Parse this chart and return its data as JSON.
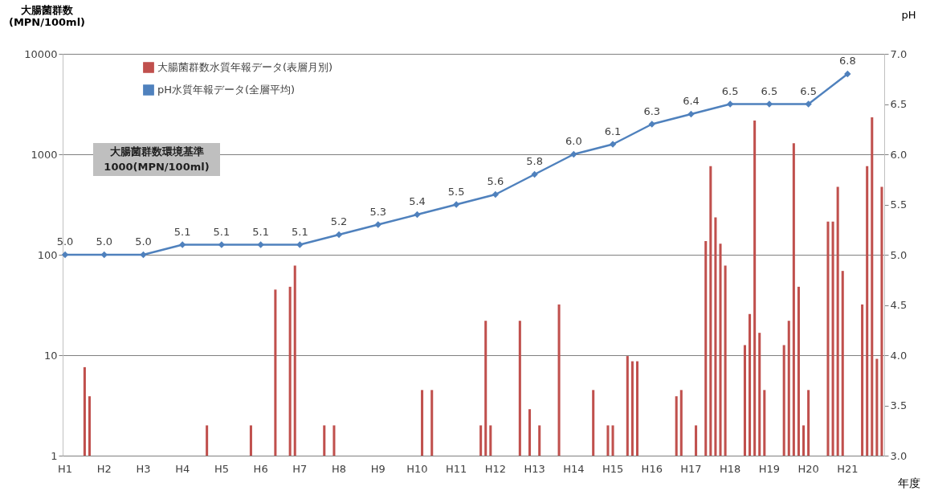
{
  "chart_data": {
    "type": "bar",
    "ylabel": "大腸菌群数\n(MPN/100ml)",
    "y2label": "pH",
    "xlabel": "年度",
    "categories": [
      "H1",
      null,
      null,
      null,
      null,
      null,
      null,
      null,
      "H2",
      null,
      null,
      null,
      null,
      null,
      null,
      null,
      "H3",
      null,
      null,
      null,
      null,
      null,
      null,
      null,
      "H4",
      null,
      null,
      null,
      null,
      null,
      null,
      null,
      "H5",
      null,
      null,
      null,
      null,
      null,
      null,
      null,
      "H6",
      null,
      null,
      null,
      null,
      null,
      null,
      null,
      "H7",
      null,
      null,
      null,
      null,
      null,
      null,
      null,
      "H8",
      null,
      null,
      null,
      null,
      null,
      null,
      null,
      "H9",
      null,
      null,
      null,
      null,
      null,
      null,
      null,
      "H10",
      null,
      null,
      null,
      null,
      null,
      null,
      null,
      "H11",
      null,
      null,
      null,
      null,
      null,
      null,
      null,
      "H12",
      null,
      null,
      null,
      null,
      null,
      null,
      null,
      "H13",
      null,
      null,
      null,
      null,
      null,
      null,
      null,
      "H14",
      null,
      null,
      null,
      null,
      null,
      null,
      null,
      "H15",
      null,
      null,
      null,
      null,
      null,
      null,
      null,
      "H16",
      null,
      null,
      null,
      null,
      null,
      null,
      null,
      "H17",
      null,
      null,
      null,
      null,
      null,
      null,
      null,
      "H18",
      null,
      null,
      null,
      null,
      null,
      null,
      null,
      "H19",
      null,
      null,
      null,
      null,
      null,
      null,
      null,
      "H20",
      null,
      null,
      null,
      null,
      null,
      null,
      null,
      "H21",
      null,
      null,
      null,
      null,
      null,
      null,
      null
    ],
    "ylim": [
      1,
      10000
    ],
    "yticks": [
      1,
      10,
      100,
      1000,
      10000
    ],
    "log": "y",
    "y2lim": [
      3,
      7
    ],
    "y2ticks": [
      {
        "value": 3,
        "label": "3.0"
      },
      {
        "value": 3.5,
        "label": "3.5"
      },
      {
        "value": 4,
        "label": "4.0"
      },
      {
        "value": 4.5,
        "label": "4.5"
      },
      {
        "value": 5,
        "label": "5.0"
      },
      {
        "value": 5.5,
        "label": "5.5"
      },
      {
        "value": 6,
        "label": "6.0"
      },
      {
        "value": 6.5,
        "label": "6.5"
      },
      {
        "value": 7,
        "label": "7.0"
      }
    ],
    "grid": "y",
    "legend": "top left",
    "series": [
      {
        "name": "大腸菌群数水質年報データ(表層月別)",
        "color": "#c0504d",
        "values": [
          null,
          null,
          null,
          null,
          7.6,
          3.9,
          null,
          null,
          null,
          null,
          null,
          null,
          null,
          null,
          null,
          null,
          null,
          null,
          null,
          null,
          null,
          null,
          null,
          null,
          null,
          null,
          null,
          null,
          null,
          2,
          null,
          null,
          null,
          null,
          null,
          null,
          null,
          null,
          2,
          null,
          null,
          null,
          null,
          45,
          null,
          null,
          48,
          78,
          null,
          null,
          null,
          null,
          null,
          2,
          null,
          2,
          null,
          null,
          null,
          null,
          null,
          null,
          null,
          null,
          null,
          null,
          null,
          null,
          null,
          null,
          null,
          null,
          null,
          4.5,
          null,
          4.5,
          null,
          null,
          null,
          null,
          null,
          null,
          null,
          null,
          null,
          2,
          22,
          2,
          null,
          null,
          null,
          null,
          null,
          22,
          null,
          2.9,
          null,
          2,
          null,
          null,
          null,
          32,
          null,
          null,
          null,
          null,
          null,
          null,
          4.5,
          null,
          null,
          2,
          2,
          null,
          null,
          9.8,
          8.7,
          8.7,
          null,
          null,
          null,
          null,
          null,
          null,
          null,
          3.9,
          4.5,
          null,
          null,
          2,
          null,
          137,
          763,
          235,
          129,
          78,
          null,
          null,
          null,
          12.6,
          25.7,
          2170,
          16.7,
          4.5,
          null,
          null,
          null,
          12.6,
          22,
          1290,
          48,
          2,
          4.5,
          null,
          null,
          null,
          214,
          214,
          475,
          69,
          null,
          null,
          null,
          32,
          763,
          2335,
          9.2,
          475
        ]
      },
      {
        "name": "pH水質年報データ(全層平均)",
        "color": "#4f81bd",
        "type": "line",
        "axis": "y2",
        "marker": "diamond",
        "value_labels": [
          "5.0",
          "5.0",
          "5.0",
          "5.1",
          "5.1",
          "5.1",
          "5.1",
          "5.2",
          "5.3",
          "5.4",
          "5.5",
          "5.6",
          "5.8",
          "6.0",
          "6.1",
          "6.3",
          "6.4",
          "6.5",
          "6.5",
          "6.5",
          "6.8"
        ],
        "x": [
          "H1",
          "H2",
          "H3",
          "H4",
          "H5",
          "H6",
          "H7",
          "H8",
          "H9",
          "H10",
          "H11",
          "H12",
          "H13",
          "H14",
          "H15",
          "H16",
          "H17",
          "H18",
          "H19",
          "H20",
          "H21"
        ],
        "values": [
          5.0,
          5.0,
          5.0,
          5.1,
          5.1,
          5.1,
          5.1,
          5.2,
          5.3,
          5.4,
          5.5,
          5.6,
          5.8,
          6.0,
          6.1,
          6.3,
          6.4,
          6.5,
          6.5,
          6.5,
          6.8
        ]
      }
    ],
    "annotations": [
      "大腸菌群数環境基準\n1000(MPN/100ml)"
    ]
  }
}
